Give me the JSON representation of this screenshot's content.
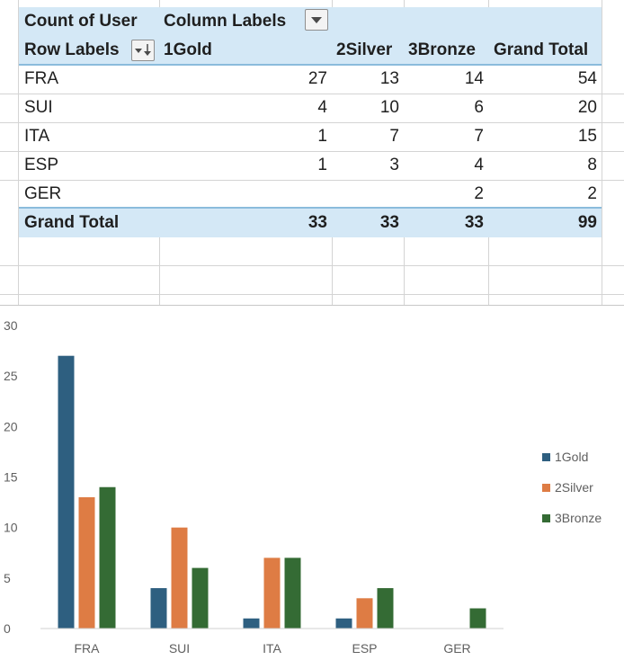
{
  "pivot": {
    "header_row1": {
      "value_field": "Count of User",
      "column_labels": "Column Labels"
    },
    "header_row2": {
      "row_labels": "Row Labels",
      "columns": [
        "1Gold",
        "2Silver",
        "3Bronze",
        "Grand Total"
      ]
    },
    "rows": [
      {
        "label": "FRA",
        "values": [
          "27",
          "13",
          "14",
          "54"
        ]
      },
      {
        "label": "SUI",
        "values": [
          "4",
          "10",
          "6",
          "20"
        ]
      },
      {
        "label": "ITA",
        "values": [
          "1",
          "7",
          "7",
          "15"
        ]
      },
      {
        "label": "ESP",
        "values": [
          "1",
          "3",
          "4",
          "8"
        ]
      },
      {
        "label": "GER",
        "values": [
          "",
          "",
          "2",
          "2"
        ]
      }
    ],
    "grand_total": {
      "label": "Grand Total",
      "values": [
        "33",
        "33",
        "33",
        "99"
      ]
    }
  },
  "chart_data": {
    "type": "bar",
    "categories": [
      "FRA",
      "SUI",
      "ITA",
      "ESP",
      "GER"
    ],
    "series": [
      {
        "name": "1Gold",
        "values": [
          27,
          4,
          1,
          1,
          0
        ],
        "color": "#2e5f80"
      },
      {
        "name": "2Silver",
        "values": [
          13,
          10,
          7,
          3,
          0
        ],
        "color": "#de7c44"
      },
      {
        "name": "3Bronze",
        "values": [
          14,
          6,
          7,
          4,
          2
        ],
        "color": "#346b34"
      }
    ],
    "y_ticks": [
      "0",
      "5",
      "10",
      "15",
      "20",
      "25",
      "30"
    ],
    "ylim": [
      0,
      30
    ],
    "grid": false,
    "legend": "right"
  },
  "colors": {
    "pivot_header_fill": "#d4e8f6",
    "pivot_rule": "#8bbcdc",
    "gridline": "#d4d4d4"
  }
}
